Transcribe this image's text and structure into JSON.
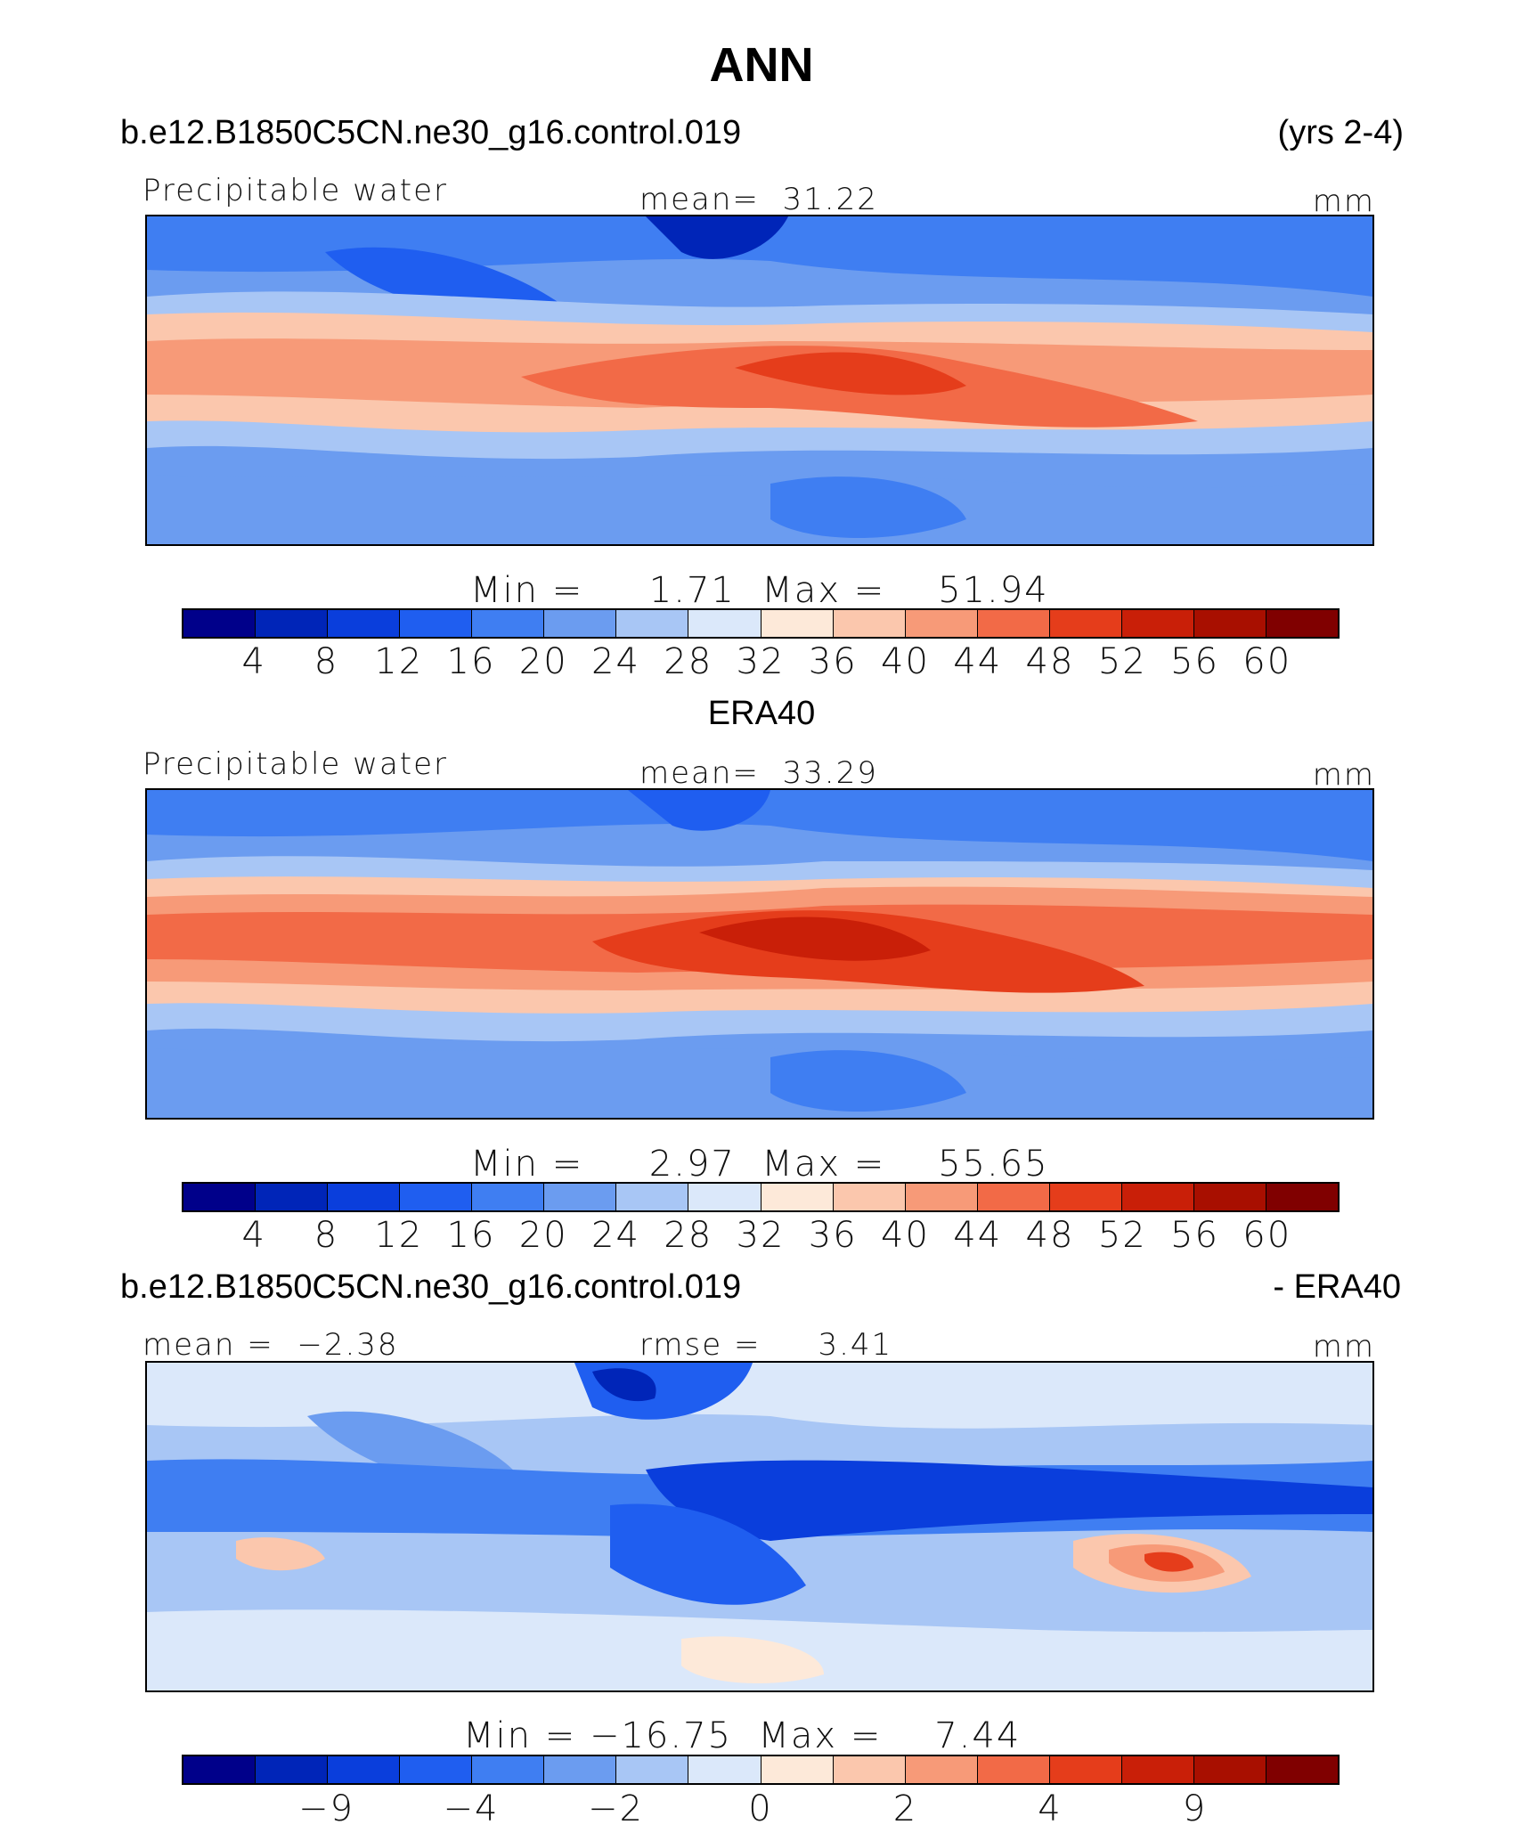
{
  "title": "ANN",
  "colorbar_colors": [
    "#00008a",
    "#0025b8",
    "#0a3edc",
    "#1f5ef0",
    "#3f7ef2",
    "#6b9cf0",
    "#a8c6f5",
    "#dbe8fa",
    "#fde9d9",
    "#fbc7ad",
    "#f79a78",
    "#f26a47",
    "#e53d1b",
    "#c91f08",
    "#a80f00",
    "#800000"
  ],
  "chart_data": [
    {
      "type": "heatmap",
      "case": "b.e12.B1850C5CN.ne30_g16.control.019",
      "years": "(yrs 2-4)",
      "variable": "Precipitable water",
      "mean_label": "mean=",
      "mean": "31.22",
      "units": "mm",
      "min_label": "Min  =",
      "min": "1.71",
      "max_label": "Max  =",
      "max": "51.94",
      "colorbar_ticks": [
        "4",
        "8",
        "12",
        "16",
        "20",
        "24",
        "28",
        "32",
        "36",
        "40",
        "44",
        "48",
        "52",
        "56",
        "60"
      ]
    },
    {
      "type": "heatmap",
      "case": "ERA40",
      "variable": "Precipitable water",
      "mean_label": "mean=",
      "mean": "33.29",
      "units": "mm",
      "min_label": "Min  =",
      "min": "2.97",
      "max_label": "Max  =",
      "max": "55.65",
      "colorbar_ticks": [
        "4",
        "8",
        "12",
        "16",
        "20",
        "24",
        "28",
        "32",
        "36",
        "40",
        "44",
        "48",
        "52",
        "56",
        "60"
      ]
    },
    {
      "type": "heatmap",
      "case": "b.e12.B1850C5CN.ne30_g16.control.019",
      "subtract_label": "- ERA40",
      "mean_label": "mean  =",
      "mean": "−2.38",
      "rmse_label": "rmse  =",
      "rmse": "3.41",
      "units": "mm",
      "min_label": "Min  =",
      "min": "−16.75",
      "max_label": "Max  =",
      "max": "7.44",
      "colorbar_ticks": [
        "−9",
        "−4",
        "−2",
        "0",
        "2",
        "4",
        "9"
      ]
    }
  ]
}
